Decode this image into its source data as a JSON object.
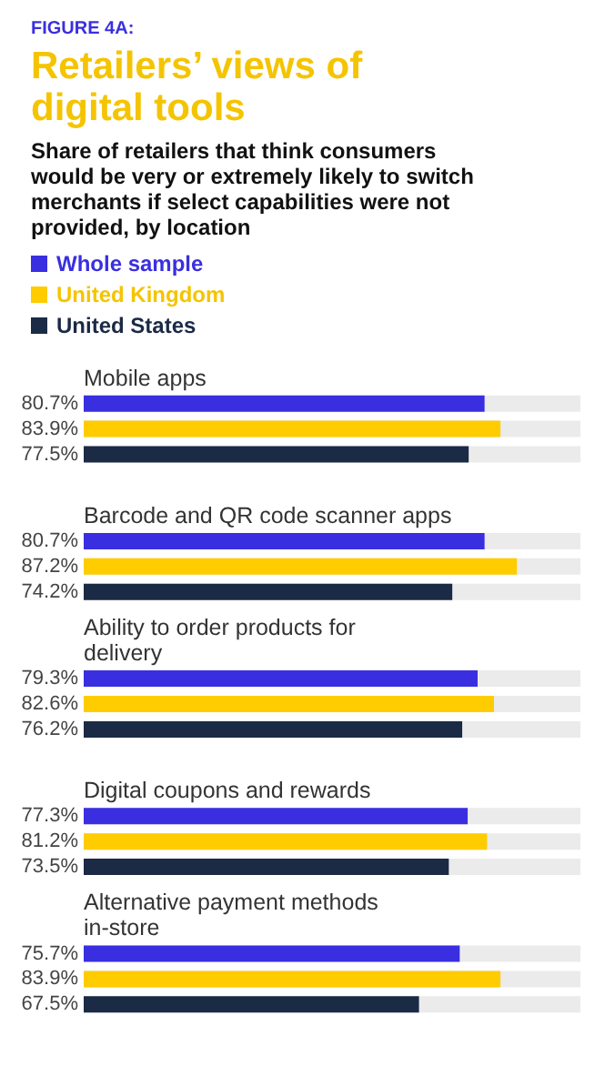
{
  "chart_data": {
    "type": "bar",
    "orientation": "horizontal",
    "title": "Retailers’ views of digital tools",
    "subtitle": "Share of retailers that think consumers would be very or extremely likely to switch merchants if select capabilities were not provided, by location",
    "annotations": [
      "FIGURE 4A:"
    ],
    "categories": [
      "Mobile apps",
      "Barcode and QR code scanner apps",
      "Ability to order products for delivery",
      "Digital coupons and rewards",
      "Alternative payment methods in-store"
    ],
    "series": [
      {
        "name": "Whole sample",
        "color": "#3a2fe0",
        "values": [
          80.7,
          80.7,
          79.3,
          77.3,
          75.7
        ],
        "value_labels": [
          "80.7%",
          "80.7%",
          "79.3%",
          "77.3%",
          "75.7%"
        ]
      },
      {
        "name": "United Kingdom",
        "color": "#ffcc00",
        "values": [
          83.9,
          87.2,
          82.6,
          81.2,
          83.9
        ],
        "value_labels": [
          "83.9%",
          "87.2%",
          "82.6%",
          "81.2%",
          "83.9%"
        ]
      },
      {
        "name": "United States",
        "color": "#1b2a45",
        "values": [
          77.5,
          74.2,
          76.2,
          73.5,
          67.5
        ],
        "value_labels": [
          "77.5%",
          "74.2%",
          "76.2%",
          "73.5%",
          "67.5%"
        ]
      }
    ],
    "xlim": [
      0,
      100
    ],
    "tick_labels": "y",
    "grid": false,
    "legend": "top left"
  }
}
